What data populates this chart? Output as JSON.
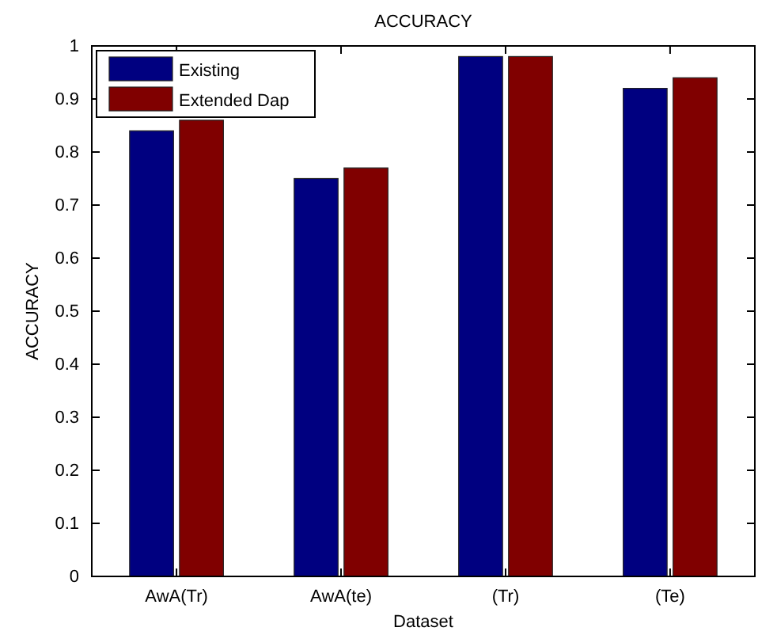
{
  "chart_data": {
    "type": "bar",
    "title": "ACCURACY",
    "xlabel": "Dataset",
    "ylabel": "ACCURACY",
    "categories": [
      "AwA(Tr)",
      "AwA(te)",
      "(Tr)",
      "(Te)"
    ],
    "series": [
      {
        "name": "Existing",
        "color": "#000080",
        "values": [
          0.84,
          0.75,
          0.98,
          0.92
        ]
      },
      {
        "name": "Extended Dap",
        "color": "#800000",
        "values": [
          0.86,
          0.77,
          0.98,
          0.94
        ]
      }
    ],
    "ylim": [
      0,
      1
    ],
    "yticks": [
      0,
      0.1,
      0.2,
      0.3,
      0.4,
      0.5,
      0.6,
      0.7,
      0.8,
      0.9,
      1
    ],
    "grid": false,
    "legend": "top left"
  }
}
